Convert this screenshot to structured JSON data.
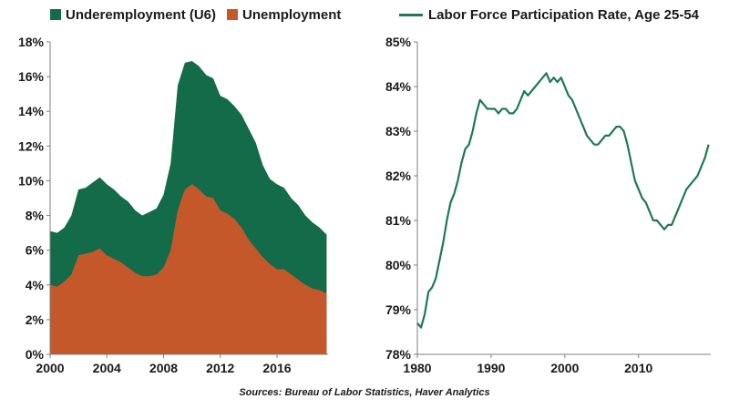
{
  "colors": {
    "underemployment": "#146b4a",
    "unemployment": "#c4582a",
    "participation": "#1d7a55"
  },
  "legend_left": {
    "u6": "Underemployment (U6)",
    "unemployment": "Unemployment"
  },
  "legend_right": {
    "participation": "Labor Force Participation Rate, Age 25-54"
  },
  "source": "Sources: Bureau of Labor Statistics, Haver Analytics",
  "chart_data": [
    {
      "type": "area",
      "title": "",
      "xlabel": "",
      "ylabel": "",
      "xlim": [
        2000,
        2019.6
      ],
      "ylim": [
        0,
        18
      ],
      "yticks": [
        0,
        2,
        4,
        6,
        8,
        10,
        12,
        14,
        16,
        18
      ],
      "ytick_labels": [
        "0%",
        "2%",
        "4%",
        "6%",
        "8%",
        "10%",
        "12%",
        "14%",
        "16%",
        "18%"
      ],
      "xticks": [
        2000,
        2004,
        2008,
        2012,
        2016
      ],
      "xtick_labels": [
        "2000",
        "2004",
        "2008",
        "2012",
        "2016"
      ],
      "grid": false,
      "legend": "top-left",
      "series": [
        {
          "name": "Underemployment (U6)",
          "x": [
            2000,
            2000.5,
            2001,
            2001.5,
            2002,
            2002.5,
            2003,
            2003.5,
            2004,
            2004.5,
            2005,
            2005.5,
            2006,
            2006.5,
            2007,
            2007.5,
            2008,
            2008.5,
            2009,
            2009.5,
            2010,
            2010.5,
            2011,
            2011.5,
            2012,
            2012.5,
            2013,
            2013.5,
            2014,
            2014.5,
            2015,
            2015.5,
            2016,
            2016.5,
            2017,
            2017.5,
            2018,
            2018.5,
            2019,
            2019.5
          ],
          "values": [
            7.1,
            7.0,
            7.3,
            8.0,
            9.5,
            9.6,
            9.9,
            10.2,
            9.8,
            9.5,
            9.1,
            8.8,
            8.3,
            8.0,
            8.2,
            8.4,
            9.2,
            11.0,
            15.5,
            16.8,
            16.9,
            16.6,
            16.1,
            15.9,
            14.9,
            14.7,
            14.3,
            13.8,
            13.0,
            12.2,
            10.9,
            10.1,
            9.8,
            9.6,
            9.0,
            8.6,
            8.0,
            7.6,
            7.3,
            6.9
          ]
        },
        {
          "name": "Unemployment",
          "x": [
            2000,
            2000.5,
            2001,
            2001.5,
            2002,
            2002.5,
            2003,
            2003.5,
            2004,
            2004.5,
            2005,
            2005.5,
            2006,
            2006.5,
            2007,
            2007.5,
            2008,
            2008.5,
            2009,
            2009.5,
            2010,
            2010.5,
            2011,
            2011.5,
            2012,
            2012.5,
            2013,
            2013.5,
            2014,
            2014.5,
            2015,
            2015.5,
            2016,
            2016.5,
            2017,
            2017.5,
            2018,
            2018.5,
            2019,
            2019.5
          ],
          "values": [
            4.0,
            3.9,
            4.2,
            4.6,
            5.7,
            5.8,
            5.9,
            6.1,
            5.7,
            5.5,
            5.3,
            5.0,
            4.7,
            4.5,
            4.5,
            4.6,
            5.0,
            6.0,
            8.3,
            9.5,
            9.8,
            9.5,
            9.1,
            9.0,
            8.3,
            8.1,
            7.8,
            7.3,
            6.6,
            6.1,
            5.6,
            5.2,
            4.9,
            4.9,
            4.6,
            4.3,
            4.0,
            3.8,
            3.7,
            3.5
          ]
        }
      ]
    },
    {
      "type": "line",
      "title": "",
      "xlabel": "",
      "ylabel": "",
      "xlim": [
        1980,
        2019.8
      ],
      "ylim": [
        78,
        85
      ],
      "yticks": [
        78,
        79,
        80,
        81,
        82,
        83,
        84,
        85
      ],
      "ytick_labels": [
        "78%",
        "79%",
        "80%",
        "81%",
        "82%",
        "83%",
        "84%",
        "85%"
      ],
      "xticks": [
        1980,
        1990,
        2000,
        2010
      ],
      "xtick_labels": [
        "1980",
        "1990",
        "2000",
        "2010"
      ],
      "grid": false,
      "legend": "top-center",
      "series": [
        {
          "name": "Labor Force Participation Rate, Age 25-54",
          "x": [
            1980,
            1980.5,
            1981,
            1981.5,
            1982,
            1982.5,
            1983,
            1983.5,
            1984,
            1984.5,
            1985,
            1985.5,
            1986,
            1986.5,
            1987,
            1987.5,
            1988,
            1988.5,
            1989,
            1989.5,
            1990,
            1990.5,
            1991,
            1991.5,
            1992,
            1992.5,
            1993,
            1993.5,
            1994,
            1994.5,
            1995,
            1995.5,
            1996,
            1996.5,
            1997,
            1997.5,
            1998,
            1998.5,
            1999,
            1999.5,
            2000,
            2000.5,
            2001,
            2001.5,
            2002,
            2002.5,
            2003,
            2003.5,
            2004,
            2004.5,
            2005,
            2005.5,
            2006,
            2006.5,
            2007,
            2007.5,
            2008,
            2008.5,
            2009,
            2009.5,
            2010,
            2010.5,
            2011,
            2011.5,
            2012,
            2012.5,
            2013,
            2013.5,
            2014,
            2014.5,
            2015,
            2015.5,
            2016,
            2016.5,
            2017,
            2017.5,
            2018,
            2018.5,
            2019,
            2019.5
          ],
          "values": [
            78.7,
            78.6,
            78.9,
            79.4,
            79.5,
            79.7,
            80.1,
            80.5,
            81.0,
            81.4,
            81.6,
            81.9,
            82.3,
            82.6,
            82.7,
            83.0,
            83.4,
            83.7,
            83.6,
            83.5,
            83.5,
            83.5,
            83.4,
            83.5,
            83.5,
            83.4,
            83.4,
            83.5,
            83.7,
            83.9,
            83.8,
            83.9,
            84.0,
            84.1,
            84.2,
            84.3,
            84.1,
            84.2,
            84.1,
            84.2,
            84.0,
            83.8,
            83.7,
            83.5,
            83.3,
            83.1,
            82.9,
            82.8,
            82.7,
            82.7,
            82.8,
            82.9,
            82.9,
            83.0,
            83.1,
            83.1,
            83.0,
            82.7,
            82.3,
            81.9,
            81.7,
            81.5,
            81.4,
            81.2,
            81.0,
            81.0,
            80.9,
            80.8,
            80.9,
            80.9,
            81.1,
            81.3,
            81.5,
            81.7,
            81.8,
            81.9,
            82.0,
            82.2,
            82.4,
            82.7
          ]
        }
      ]
    }
  ]
}
